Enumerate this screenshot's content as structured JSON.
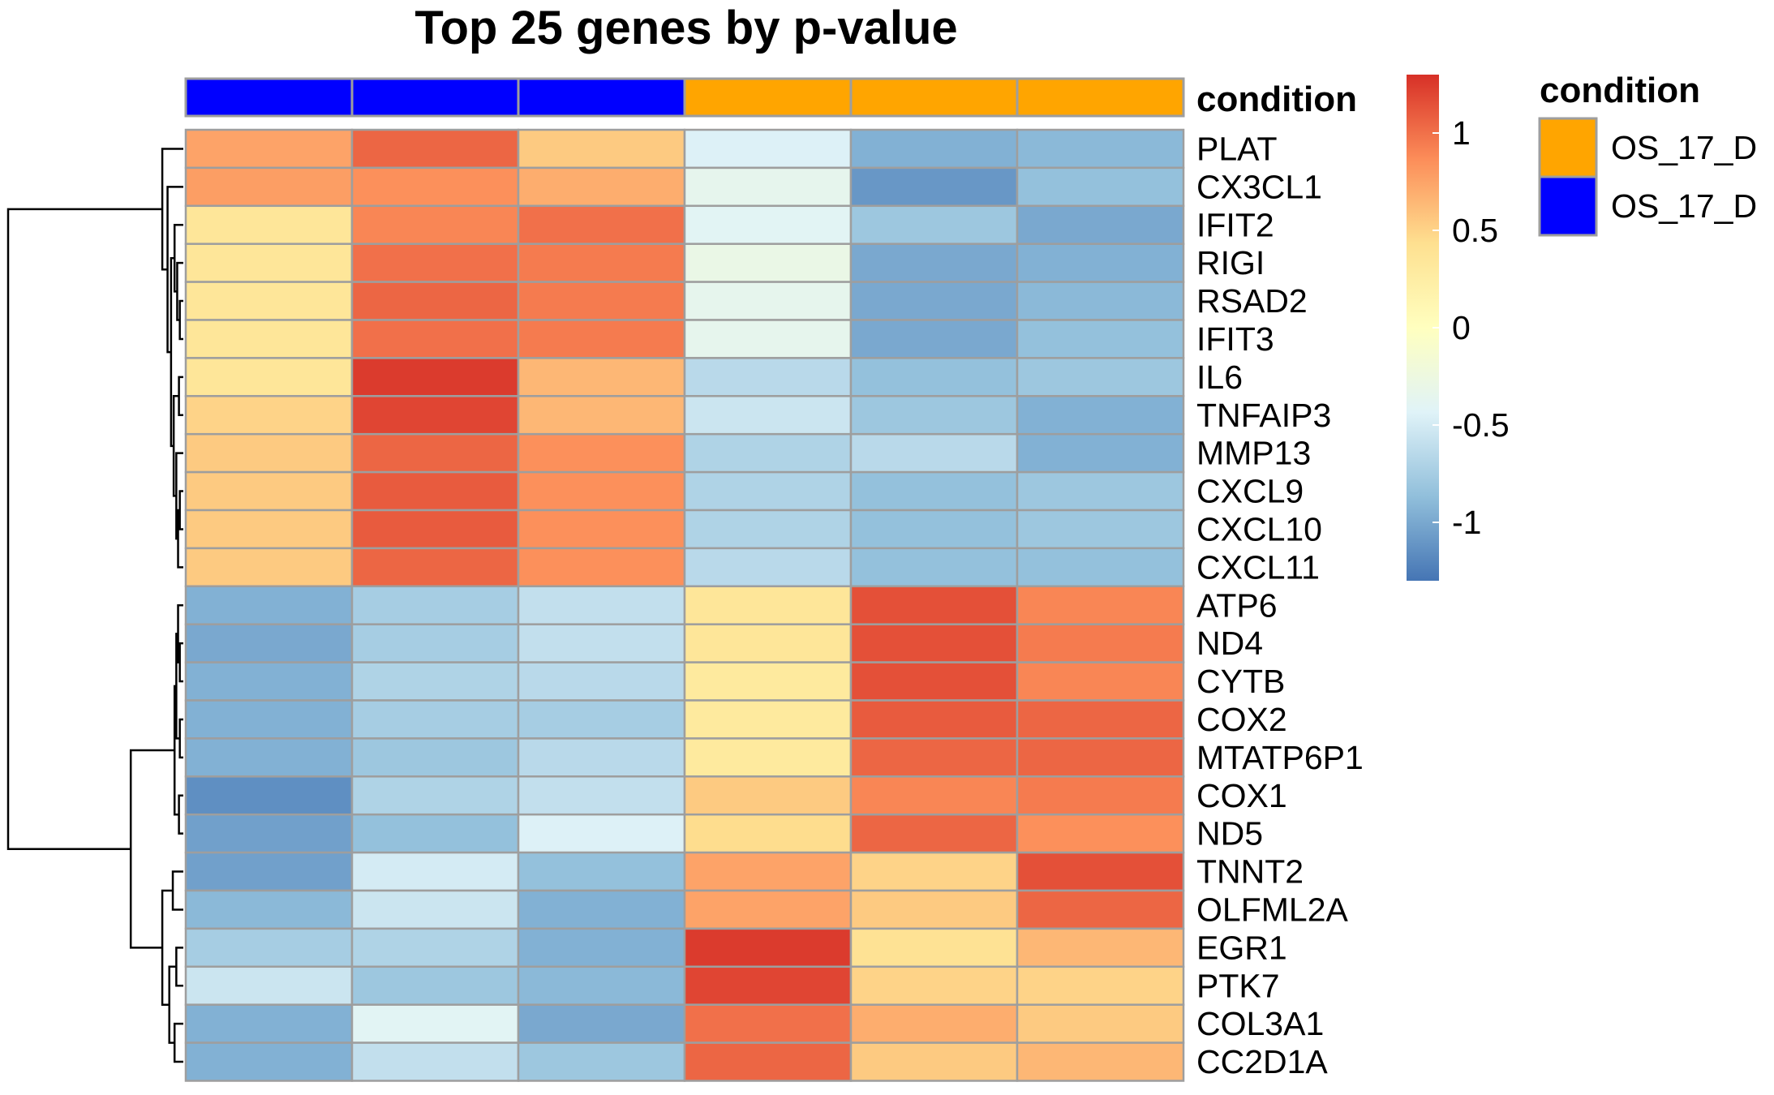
{
  "chart_data": {
    "type": "heatmap",
    "title": "Top 25 genes by p-value",
    "rows": [
      "PLAT",
      "CX3CL1",
      "IFIT2",
      "RIGI",
      "RSAD2",
      "IFIT3",
      "IL6",
      "TNFAIP3",
      "MMP13",
      "CXCL9",
      "CXCL10",
      "CXCL11",
      "ATP6",
      "ND4",
      "CYTB",
      "COX2",
      "MTATP6P1",
      "COX1",
      "ND5",
      "TNNT2",
      "OLFML2A",
      "EGR1",
      "PTK7",
      "COL3A1",
      "CC2D1A"
    ],
    "columns": [
      "",
      "",
      "",
      "",
      "",
      ""
    ],
    "values": [
      [
        0.75,
        1.05,
        0.55,
        -0.45,
        -0.95,
        -0.9
      ],
      [
        0.78,
        0.85,
        0.7,
        -0.35,
        -1.1,
        -0.85
      ],
      [
        0.35,
        0.9,
        1.0,
        -0.4,
        -0.8,
        -1.0
      ],
      [
        0.35,
        1.0,
        0.95,
        -0.3,
        -1.0,
        -0.95
      ],
      [
        0.35,
        1.05,
        0.95,
        -0.35,
        -1.0,
        -0.9
      ],
      [
        0.35,
        1.0,
        0.95,
        -0.35,
        -1.0,
        -0.85
      ],
      [
        0.35,
        1.25,
        0.65,
        -0.65,
        -0.85,
        -0.8
      ],
      [
        0.5,
        1.2,
        0.65,
        -0.55,
        -0.8,
        -0.95
      ],
      [
        0.55,
        1.05,
        0.85,
        -0.7,
        -0.65,
        -0.95
      ],
      [
        0.55,
        1.1,
        0.85,
        -0.7,
        -0.85,
        -0.8
      ],
      [
        0.55,
        1.1,
        0.85,
        -0.7,
        -0.85,
        -0.8
      ],
      [
        0.55,
        1.05,
        0.85,
        -0.65,
        -0.85,
        -0.85
      ],
      [
        -0.95,
        -0.75,
        -0.6,
        0.35,
        1.15,
        0.9
      ],
      [
        -1.0,
        -0.75,
        -0.6,
        0.35,
        1.15,
        0.95
      ],
      [
        -0.95,
        -0.7,
        -0.65,
        0.3,
        1.15,
        0.9
      ],
      [
        -0.95,
        -0.75,
        -0.75,
        0.3,
        1.1,
        1.05
      ],
      [
        -0.95,
        -0.8,
        -0.65,
        0.3,
        1.05,
        1.05
      ],
      [
        -1.15,
        -0.7,
        -0.6,
        0.55,
        0.9,
        0.95
      ],
      [
        -1.05,
        -0.85,
        -0.45,
        0.45,
        1.05,
        0.85
      ],
      [
        -1.05,
        -0.5,
        -0.85,
        0.75,
        0.5,
        1.15
      ],
      [
        -0.9,
        -0.55,
        -0.95,
        0.75,
        0.55,
        1.05
      ],
      [
        -0.75,
        -0.7,
        -0.95,
        1.25,
        0.4,
        0.65
      ],
      [
        -0.55,
        -0.8,
        -0.9,
        1.2,
        0.5,
        0.5
      ],
      [
        -0.95,
        -0.4,
        -1.0,
        1.0,
        0.7,
        0.55
      ],
      [
        -0.95,
        -0.6,
        -0.8,
        1.05,
        0.55,
        0.65
      ]
    ],
    "annotation": {
      "name": "condition",
      "column_groups": [
        "OS_17_D_blue",
        "OS_17_D_blue",
        "OS_17_D_blue",
        "OS_17_D_orange",
        "OS_17_D_orange",
        "OS_17_D_orange"
      ]
    },
    "legend": {
      "title": "condition",
      "entries": [
        {
          "label": "OS_17_D",
          "color": "#FFA500"
        },
        {
          "label": "OS_17_D",
          "color": "#0000FF"
        }
      ]
    },
    "colorbar": {
      "ticks": [
        "1",
        "0.5",
        "0",
        "-0.5",
        "-1"
      ],
      "tick_values": [
        1,
        0.5,
        0,
        -0.5,
        -1
      ],
      "range": [
        -1.3,
        1.3
      ],
      "palette": [
        "#4575B4",
        "#91BFDB",
        "#E0F3F8",
        "#FFFFBF",
        "#FEE090",
        "#FC8D59",
        "#D73027"
      ]
    },
    "dendrogram": {
      "merges": [
        [
          4,
          5
        ],
        [
          3,
          "n0"
        ],
        [
          2,
          "n1"
        ],
        [
          9,
          10
        ],
        [
          "n3",
          11
        ],
        [
          8,
          "n4"
        ],
        [
          6,
          7
        ],
        [
          "n6",
          "n5"
        ],
        [
          "n2",
          "n7"
        ],
        [
          1,
          "n8"
        ],
        [
          0,
          "n9"
        ],
        [
          13,
          14
        ],
        [
          "n11",
          12
        ],
        [
          15,
          16
        ],
        [
          "n13",
          "n12"
        ],
        [
          17,
          18
        ],
        [
          "n15",
          "n14"
        ],
        [
          21,
          22
        ],
        [
          23,
          24
        ],
        [
          "n17",
          "n18"
        ],
        [
          19,
          20
        ],
        [
          "n20",
          "n19"
        ],
        [
          "n16",
          "n21"
        ],
        [
          "n10",
          "n22"
        ]
      ],
      "heights": [
        0.02,
        0.035,
        0.05,
        0.02,
        0.03,
        0.04,
        0.025,
        0.055,
        0.07,
        0.09,
        0.12,
        0.02,
        0.03,
        0.02,
        0.04,
        0.025,
        0.05,
        0.04,
        0.05,
        0.08,
        0.06,
        0.12,
        0.3,
        1.0
      ]
    },
    "colors": {
      "annotation_blue": "#0000FF",
      "annotation_orange": "#FFA500",
      "cell_border": "#9E9E9E"
    }
  }
}
